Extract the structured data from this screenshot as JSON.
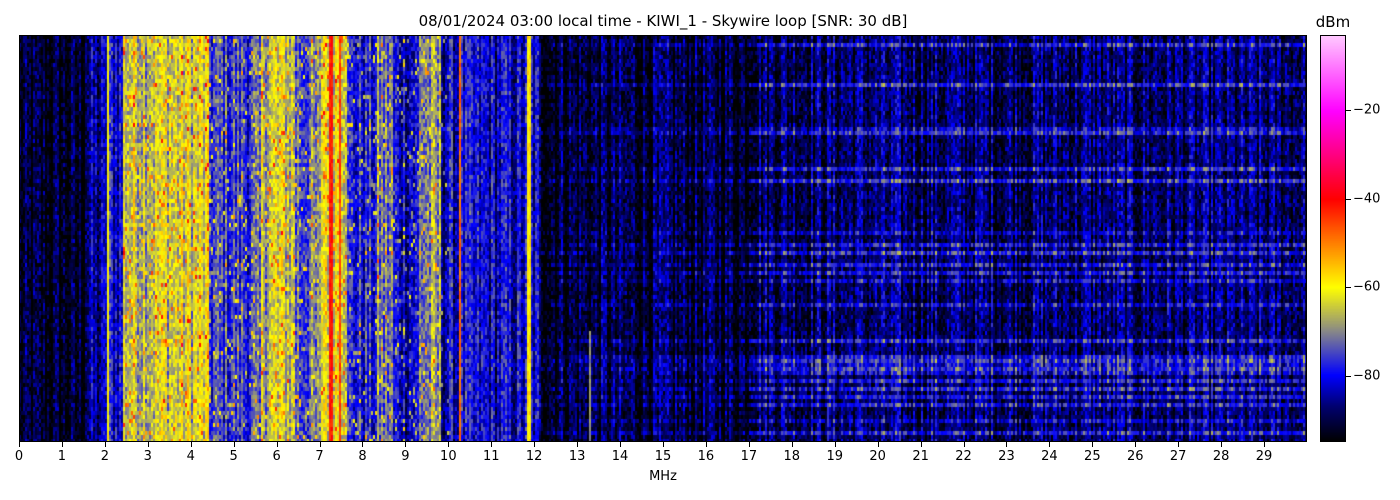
{
  "chart_data": {
    "type": "heatmap",
    "title": "08/01/2024 03:00 local time - KIWI_1 - Skywire loop [SNR: 30 dB]",
    "xlabel": "MHz",
    "xlim": [
      0,
      30
    ],
    "xticks": [
      "0",
      "1",
      "2",
      "3",
      "4",
      "5",
      "6",
      "7",
      "8",
      "9",
      "10",
      "11",
      "12",
      "13",
      "14",
      "15",
      "16",
      "17",
      "18",
      "19",
      "20",
      "21",
      "22",
      "23",
      "24",
      "25",
      "26",
      "27",
      "28",
      "29"
    ],
    "colorbar": {
      "label": "dBm",
      "range": [
        -95,
        -3
      ],
      "ticks": [
        -20,
        -40,
        -60,
        -80
      ],
      "tick_labels": [
        "−20",
        "−40",
        "−60",
        "−80"
      ],
      "colormap_stops": [
        {
          "value": -95,
          "color": "#000000"
        },
        {
          "value": -87,
          "color": "#000070"
        },
        {
          "value": -80,
          "color": "#0000ff"
        },
        {
          "value": -70,
          "color": "#888888"
        },
        {
          "value": -60,
          "color": "#ffff00"
        },
        {
          "value": -40,
          "color": "#ff0000"
        },
        {
          "value": -20,
          "color": "#ff00ff"
        },
        {
          "value": -3,
          "color": "#ffc8ff"
        }
      ]
    },
    "band_levels_dbm": [
      {
        "from": 0,
        "to": 1.5,
        "level": -93
      },
      {
        "from": 1.5,
        "to": 2.0,
        "level": -86
      },
      {
        "from": 2.0,
        "to": 2.4,
        "level": -80
      },
      {
        "from": 2.4,
        "to": 4.4,
        "level": -64
      },
      {
        "from": 4.4,
        "to": 5.6,
        "level": -76
      },
      {
        "from": 5.6,
        "to": 6.4,
        "level": -65
      },
      {
        "from": 6.4,
        "to": 7.0,
        "level": -73
      },
      {
        "from": 7.0,
        "to": 7.6,
        "level": -60
      },
      {
        "from": 7.6,
        "to": 8.3,
        "level": -79
      },
      {
        "from": 8.3,
        "to": 8.7,
        "level": -72
      },
      {
        "from": 8.7,
        "to": 9.3,
        "level": -81
      },
      {
        "from": 9.3,
        "to": 9.8,
        "level": -71
      },
      {
        "from": 9.8,
        "to": 12.1,
        "level": -82
      },
      {
        "from": 12.1,
        "to": 17.0,
        "level": -91
      },
      {
        "from": 17.0,
        "to": 30.0,
        "level": -88
      }
    ],
    "carriers_mhz": [
      {
        "freq": 2.05,
        "level": -60
      },
      {
        "freq": 7.25,
        "level": -42
      },
      {
        "freq": 7.45,
        "level": -45
      },
      {
        "freq": 10.25,
        "level": -48
      },
      {
        "freq": 11.85,
        "level": -58
      },
      {
        "freq": 13.27,
        "level": -70
      }
    ]
  }
}
